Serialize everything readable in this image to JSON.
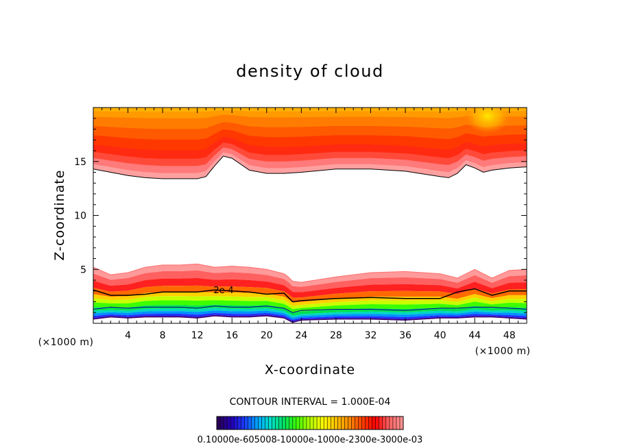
{
  "chart_data": {
    "type": "heatmap",
    "title": "density of cloud",
    "xlabel": "X-coordinate",
    "ylabel": "Z-coordinate",
    "x_unit": "(×1000 m)",
    "y_unit": "(×1000 m)",
    "xlim": [
      0,
      50
    ],
    "ylim": [
      0,
      20
    ],
    "x_ticks": [
      4,
      8,
      12,
      16,
      20,
      24,
      28,
      32,
      36,
      40,
      44,
      48
    ],
    "y_ticks": [
      5,
      10,
      15
    ],
    "grid": false,
    "contour_interval_text": "CONTOUR INTERVAL = 1.000E-04",
    "contour_label": "2e-4",
    "colorbar_tick_text": "0.10000e-605008-10000e-1000e-2300e-3000e-03",
    "colorbar_colors": [
      "#2a005a",
      "#2400b8",
      "#1a3cff",
      "#00a6ff",
      "#00e0c8",
      "#00e060",
      "#3cff00",
      "#b4ff00",
      "#ffff00",
      "#ffc000",
      "#ff8c00",
      "#ff4000",
      "#ff0000",
      "#ff6060",
      "#ff9090"
    ],
    "regions": {
      "upper_cloud": {
        "x": [
          0,
          2,
          4,
          6,
          8,
          10,
          12,
          13,
          14,
          15,
          16,
          18,
          20,
          22,
          24,
          28,
          32,
          36,
          40,
          41,
          42,
          43,
          44,
          45,
          46,
          48,
          50
        ],
        "base_z": [
          14.3,
          14.0,
          13.7,
          13.5,
          13.4,
          13.4,
          13.4,
          13.6,
          14.6,
          15.5,
          15.3,
          14.2,
          13.9,
          13.9,
          14.0,
          14.3,
          14.3,
          14.1,
          13.6,
          13.5,
          13.9,
          14.7,
          14.4,
          14.0,
          14.2,
          14.4,
          14.5
        ],
        "top_z": 20
      },
      "lower_cloud": {
        "x": [
          0,
          2,
          4,
          6,
          8,
          10,
          12,
          14,
          16,
          18,
          20,
          22,
          22.5,
          23,
          24,
          28,
          32,
          36,
          40,
          42,
          44,
          46,
          48,
          50
        ],
        "top_z": [
          5.2,
          4.5,
          4.7,
          5.2,
          5.4,
          5.4,
          5.5,
          5.2,
          5.3,
          5.2,
          5.0,
          4.6,
          4.3,
          3.9,
          3.8,
          4.3,
          4.7,
          4.8,
          4.6,
          4.2,
          5.0,
          4.2,
          4.9,
          5.0
        ],
        "contour_2e4_z": [
          3.1,
          2.6,
          2.6,
          2.7,
          2.9,
          2.9,
          2.9,
          3.1,
          3.0,
          2.9,
          2.7,
          2.8,
          2.4,
          2.0,
          2.1,
          2.3,
          2.4,
          2.3,
          2.3,
          2.9,
          3.2,
          2.6,
          3.0,
          3.0
        ],
        "base_z": [
          0.4,
          0.6,
          0.5,
          0.6,
          0.6,
          0.6,
          0.5,
          0.7,
          0.6,
          0.6,
          0.7,
          0.5,
          0.3,
          0.1,
          0.3,
          0.4,
          0.4,
          0.3,
          0.5,
          0.5,
          0.6,
          0.6,
          0.5,
          0.4
        ]
      }
    }
  }
}
